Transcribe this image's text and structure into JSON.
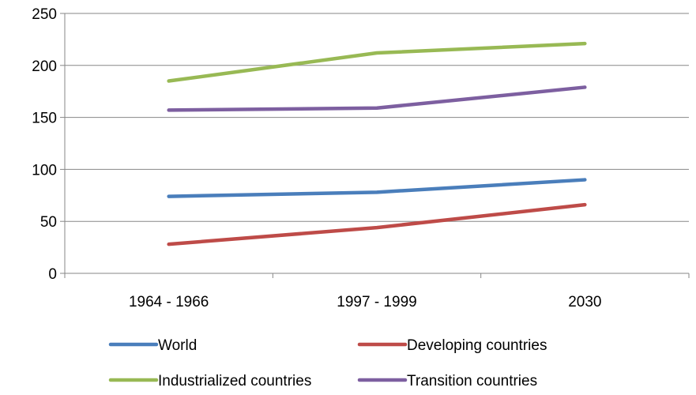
{
  "chart_data": {
    "type": "line",
    "title": "",
    "xlabel": "",
    "ylabel": "",
    "categories": [
      "1964 - 1966",
      "1997 - 1999",
      "2030"
    ],
    "ylim": [
      0,
      250
    ],
    "yticks": [
      0,
      50,
      100,
      150,
      200,
      250
    ],
    "grid": true,
    "legend_position": "bottom",
    "series": [
      {
        "name": "World",
        "values": [
          74,
          78,
          90
        ],
        "color": "#4a7ebb"
      },
      {
        "name": "Developing countries",
        "values": [
          28,
          44,
          66
        ],
        "color": "#be4b48"
      },
      {
        "name": "Industrialized countries",
        "values": [
          185,
          212,
          221
        ],
        "color": "#98b954"
      },
      {
        "name": "Transition countries",
        "values": [
          157,
          159,
          179
        ],
        "color": "#7d5fa0"
      }
    ]
  }
}
